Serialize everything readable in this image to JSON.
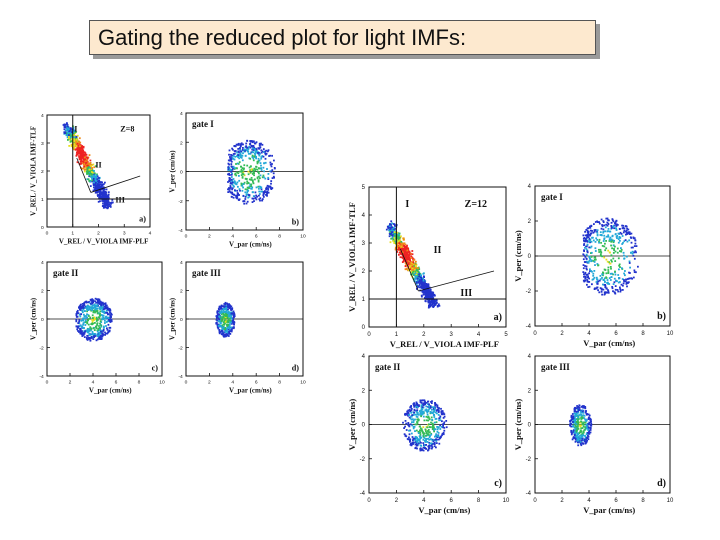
{
  "slide": {
    "title": "Gating the reduced plot for light IMFs:"
  },
  "chart_data": [
    {
      "type": "heatmap",
      "figure": "Z=8",
      "panels": [
        {
          "id": "a",
          "panel_label": "a)",
          "annotation": "Z=8",
          "gate_labels": [
            "I",
            "II",
            "III"
          ],
          "xlabel": "V_REL / V_VIOLA  IMF-PLF",
          "ylabel": "V_REL / V_VIOLA  IMF-TLF",
          "xlim": [
            0,
            4
          ],
          "ylim": [
            0,
            4
          ],
          "xticks": [
            "0",
            "1",
            "2",
            "3",
            "4"
          ],
          "yticks": [
            "0",
            "1",
            "2",
            "3",
            "4"
          ]
        },
        {
          "id": "b",
          "panel_label": "b)",
          "annotation": "gate I",
          "xlabel": "V_par (cm/ns)",
          "ylabel": "V_per (cm/ns)",
          "xlim": [
            0,
            10
          ],
          "ylim": [
            -4,
            4
          ],
          "xticks": [
            "0",
            "2",
            "4",
            "6",
            "8",
            "10"
          ],
          "yticks": [
            "-4",
            "-2",
            "0",
            "2",
            "4"
          ]
        },
        {
          "id": "c",
          "panel_label": "c)",
          "annotation": "gate II",
          "xlabel": "V_par (cm/ns)",
          "ylabel": "V_per (cm/ns)",
          "xlim": [
            0,
            10
          ],
          "ylim": [
            -4,
            4
          ],
          "xticks": [
            "0",
            "2",
            "4",
            "6",
            "8",
            "10"
          ],
          "yticks": [
            "-4",
            "-2",
            "0",
            "2",
            "4"
          ]
        },
        {
          "id": "d",
          "panel_label": "d)",
          "annotation": "gate III",
          "xlabel": "V_par (cm/ns)",
          "ylabel": "V_per (cm/ns)",
          "xlim": [
            0,
            10
          ],
          "ylim": [
            -4,
            4
          ],
          "xticks": [
            "0",
            "2",
            "4",
            "6",
            "8",
            "10"
          ],
          "yticks": [
            "-4",
            "-2",
            "0",
            "2",
            "4"
          ]
        }
      ]
    },
    {
      "type": "heatmap",
      "figure": "Z=12",
      "panels": [
        {
          "id": "a",
          "panel_label": "a)",
          "annotation": "Z=12",
          "gate_labels": [
            "I",
            "II",
            "III"
          ],
          "xlabel": "V_REL / V_VIOLA  IMF-PLF",
          "ylabel": "V_REL / V_VIOLA  IMF-TLF",
          "xlim": [
            0,
            5
          ],
          "ylim": [
            0,
            5
          ],
          "xticks": [
            "0",
            "1",
            "2",
            "3",
            "4",
            "5"
          ],
          "yticks": [
            "0",
            "1",
            "2",
            "3",
            "4",
            "5"
          ]
        },
        {
          "id": "b",
          "panel_label": "b)",
          "annotation": "gate I",
          "xlabel": "V_par (cm/ns)",
          "ylabel": "V_per (cm/ns)",
          "xlim": [
            0,
            10
          ],
          "ylim": [
            -4,
            4
          ],
          "xticks": [
            "0",
            "2",
            "4",
            "6",
            "8",
            "10"
          ],
          "yticks": [
            "-4",
            "-2",
            "0",
            "2",
            "4"
          ]
        },
        {
          "id": "c",
          "panel_label": "c)",
          "annotation": "gate II",
          "xlabel": "V_par (cm/ns)",
          "ylabel": "V_per (cm/ns)",
          "xlim": [
            0,
            10
          ],
          "ylim": [
            -4,
            4
          ],
          "xticks": [
            "0",
            "2",
            "4",
            "6",
            "8",
            "10"
          ],
          "yticks": [
            "-4",
            "-2",
            "0",
            "2",
            "4"
          ]
        },
        {
          "id": "d",
          "panel_label": "d)",
          "annotation": "gate III",
          "xlabel": "V_par (cm/ns)",
          "ylabel": "V_per (cm/ns)",
          "xlim": [
            0,
            10
          ],
          "ylim": [
            -4,
            4
          ],
          "xticks": [
            "0",
            "2",
            "4",
            "6",
            "8",
            "10"
          ],
          "yticks": [
            "-4",
            "-2",
            "0",
            "2",
            "4"
          ]
        }
      ]
    }
  ],
  "colors": {
    "title_fill": "#fde9cf",
    "density_low": "#2233cc",
    "density_mid": "#33bb55",
    "density_high": "#ee2222"
  }
}
